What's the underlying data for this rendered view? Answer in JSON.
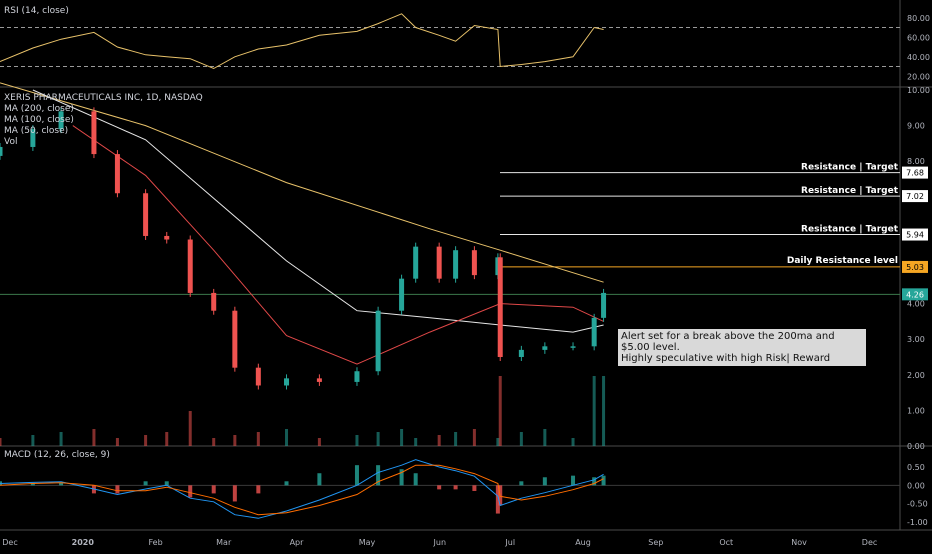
{
  "header": {
    "symbol_line": "XERIS PHARMACEUTICALS INC, 1D, NASDAQ",
    "indicators": [
      "MA (200, close)",
      "MA (100, close)",
      "MA (50, close)",
      "Vol"
    ]
  },
  "rsi_pane": {
    "label": "RSI (14, close)",
    "ticks": [
      "80.00",
      "60.00",
      "40.00",
      "20.00"
    ]
  },
  "macd_pane": {
    "label": "MACD (12, 26, close, 9)",
    "ticks": [
      "0.50",
      "0.00",
      "-0.50",
      "-1.00"
    ]
  },
  "price_axis": {
    "ticks": [
      "10.00",
      "9.00",
      "8.00",
      "7.00",
      "6.00",
      "5.00",
      "4.00",
      "3.00",
      "2.00",
      "1.00",
      "0.00"
    ]
  },
  "time_axis": {
    "labels": [
      "Dec",
      "2020",
      "Feb",
      "Mar",
      "Apr",
      "May",
      "Jun",
      "Jul",
      "Aug",
      "Sep",
      "Oct",
      "Nov",
      "Dec"
    ]
  },
  "annotations": {
    "res1": "Resistance | Target",
    "res2": "Resistance | Target",
    "res3": "Resistance | Target",
    "daily": "Daily Resistance level",
    "note_line1": "Alert set for a break above the 200ma and $5.00 level.",
    "note_line2": "Highly speculative with high Risk| Reward"
  },
  "colors": {
    "up": "#26a69a",
    "down": "#ef5350",
    "ma200": "#e8c26a",
    "ma100": "#e6e6e6",
    "ma50": "#e04848",
    "rsi": "#e8c26a",
    "macd": "#2196f3",
    "signal": "#ff6d00",
    "daily_res": "#f5a623"
  },
  "chart_data": {
    "type": "line",
    "title": "XERIS PHARMACEUTICALS INC, 1D, NASDAQ",
    "x_range": [
      "2019-12-01",
      "2020-12-31"
    ],
    "x_ticks": [
      "Dec",
      "2020",
      "Feb",
      "Mar",
      "Apr",
      "May",
      "Jun",
      "Jul",
      "Aug",
      "Sep",
      "Oct",
      "Nov",
      "Dec"
    ],
    "ylim": [
      0,
      10
    ],
    "y_ticks": [
      0,
      1,
      2,
      3,
      4,
      5,
      6,
      7,
      8,
      9,
      10
    ],
    "price_series": {
      "name": "price",
      "x": [
        "2019-12-01",
        "2019-12-15",
        "2019-12-27",
        "2020-01-10",
        "2020-01-20",
        "2020-02-01",
        "2020-02-10",
        "2020-02-20",
        "2020-03-01",
        "2020-03-10",
        "2020-03-20",
        "2020-04-01",
        "2020-04-15",
        "2020-05-01",
        "2020-05-10",
        "2020-05-20",
        "2020-05-26",
        "2020-06-05",
        "2020-06-12",
        "2020-06-20",
        "2020-06-30",
        "2020-07-01",
        "2020-07-10",
        "2020-07-20",
        "2020-08-01",
        "2020-08-10",
        "2020-08-14"
      ],
      "values": [
        8.4,
        8.9,
        9.4,
        8.2,
        7.1,
        5.9,
        5.8,
        4.3,
        3.8,
        2.2,
        1.7,
        1.9,
        1.8,
        2.1,
        3.8,
        4.7,
        5.6,
        4.7,
        5.5,
        4.8,
        5.3,
        2.5,
        2.7,
        2.8,
        2.8,
        3.6,
        4.3
      ]
    },
    "series": [
      {
        "name": "MA (200, close)",
        "x": [
          "2019-12-01",
          "2020-02-01",
          "2020-04-01",
          "2020-06-01",
          "2020-07-01",
          "2020-08-14"
        ],
        "values": [
          10.2,
          9.0,
          7.4,
          6.1,
          5.5,
          4.6
        ]
      },
      {
        "name": "MA (100, close)",
        "x": [
          "2019-12-15",
          "2020-02-01",
          "2020-04-01",
          "2020-05-01",
          "2020-06-01",
          "2020-07-01",
          "2020-08-01",
          "2020-08-14"
        ],
        "values": [
          10.0,
          8.6,
          5.2,
          3.8,
          3.6,
          3.4,
          3.2,
          3.4
        ]
      },
      {
        "name": "MA (50, close)",
        "x": [
          "2020-01-01",
          "2020-02-01",
          "2020-03-01",
          "2020-04-01",
          "2020-05-01",
          "2020-06-01",
          "2020-07-01",
          "2020-08-01",
          "2020-08-14"
        ],
        "values": [
          9.0,
          7.6,
          5.5,
          3.1,
          2.3,
          3.2,
          4.0,
          3.9,
          3.5
        ]
      }
    ],
    "levels": [
      7.68,
      7.02,
      5.94,
      5.03
    ],
    "last_price": 4.26,
    "rsi": {
      "ylim": [
        10,
        90
      ],
      "upper": 70,
      "lower": 30,
      "values": [
        35,
        49,
        58,
        65,
        50,
        42,
        40,
        38,
        28,
        40,
        48,
        52,
        62,
        66,
        74,
        84,
        70,
        62,
        56,
        72,
        68,
        30,
        32,
        35,
        40,
        70,
        68
      ]
    },
    "macd": {
      "ylim": [
        -1.0,
        0.8
      ],
      "macd": [
        0.05,
        0.08,
        0.1,
        -0.1,
        -0.25,
        -0.1,
        0.0,
        -0.35,
        -0.45,
        -0.8,
        -0.9,
        -0.7,
        -0.4,
        0.0,
        0.35,
        0.55,
        0.7,
        0.5,
        0.4,
        0.25,
        -0.3,
        -0.55,
        -0.35,
        -0.2,
        0.0,
        0.15,
        0.3
      ],
      "signal": [
        0.0,
        0.05,
        0.07,
        0.0,
        -0.15,
        -0.15,
        -0.05,
        -0.2,
        -0.35,
        -0.6,
        -0.8,
        -0.75,
        -0.55,
        -0.25,
        0.1,
        0.35,
        0.55,
        0.55,
        0.45,
        0.32,
        0.05,
        -0.3,
        -0.4,
        -0.3,
        -0.12,
        0.05,
        0.18
      ]
    }
  }
}
